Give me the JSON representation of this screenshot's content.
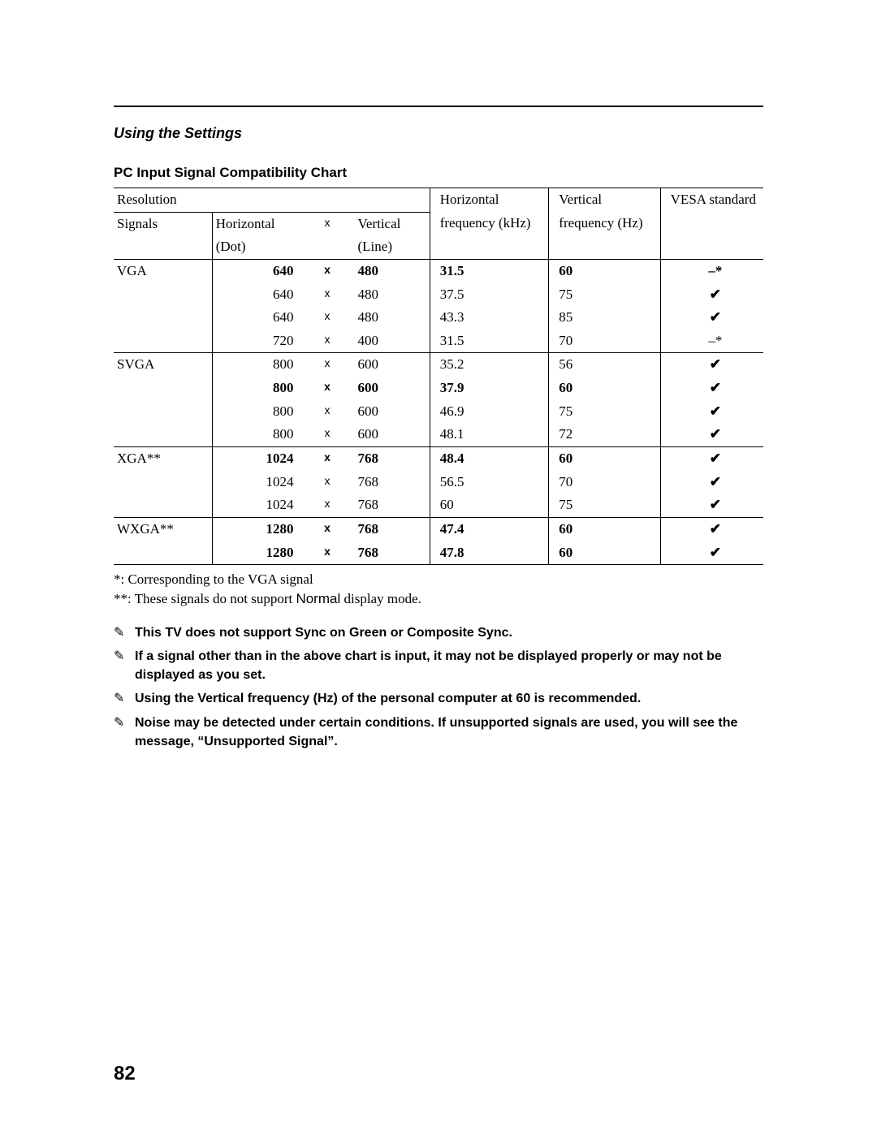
{
  "header": {
    "section": "Using the Settings",
    "subtitle": "PC Input Signal Compatibility Chart"
  },
  "table": {
    "head": {
      "resolution": "Resolution",
      "signals": "Signals",
      "horiz_dot_1": "Horizontal",
      "horiz_dot_2": "(Dot)",
      "x": "x",
      "vert_line_1": "Vertical",
      "vert_line_2": "(Line)",
      "hfreq_1": "Horizontal",
      "hfreq_2": "frequency (kHz)",
      "vfreq_1": "Vertical",
      "vfreq_2": "frequency (Hz)",
      "vesa": "VESA standard"
    },
    "groups": [
      {
        "signal": "VGA",
        "rows": [
          {
            "h": "640",
            "x": "x",
            "v": "480",
            "hf": "31.5",
            "vf": "60",
            "vesa": "–*",
            "bold": true
          },
          {
            "h": "640",
            "x": "x",
            "v": "480",
            "hf": "37.5",
            "vf": "75",
            "vesa": "✔",
            "bold": false
          },
          {
            "h": "640",
            "x": "x",
            "v": "480",
            "hf": "43.3",
            "vf": "85",
            "vesa": "✔",
            "bold": false
          },
          {
            "h": "720",
            "x": "x",
            "v": "400",
            "hf": "31.5",
            "vf": "70",
            "vesa": "–*",
            "bold": false
          }
        ]
      },
      {
        "signal": "SVGA",
        "rows": [
          {
            "h": "800",
            "x": "x",
            "v": "600",
            "hf": "35.2",
            "vf": "56",
            "vesa": "✔",
            "bold": false
          },
          {
            "h": "800",
            "x": "x",
            "v": "600",
            "hf": "37.9",
            "vf": "60",
            "vesa": "✔",
            "bold": true
          },
          {
            "h": "800",
            "x": "x",
            "v": "600",
            "hf": "46.9",
            "vf": "75",
            "vesa": "✔",
            "bold": false
          },
          {
            "h": "800",
            "x": "x",
            "v": "600",
            "hf": "48.1",
            "vf": "72",
            "vesa": "✔",
            "bold": false
          }
        ]
      },
      {
        "signal": "XGA**",
        "rows": [
          {
            "h": "1024",
            "x": "x",
            "v": "768",
            "hf": "48.4",
            "vf": "60",
            "vesa": "✔",
            "bold": true
          },
          {
            "h": "1024",
            "x": "x",
            "v": "768",
            "hf": "56.5",
            "vf": "70",
            "vesa": "✔",
            "bold": false
          },
          {
            "h": "1024",
            "x": "x",
            "v": "768",
            "hf": "60",
            "vf": "75",
            "vesa": "✔",
            "bold": false
          }
        ]
      },
      {
        "signal": "WXGA**",
        "rows": [
          {
            "h": "1280",
            "x": "x",
            "v": "768",
            "hf": "47.4",
            "vf": "60",
            "vesa": "✔",
            "bold": true
          },
          {
            "h": "1280",
            "x": "x",
            "v": "768",
            "hf": "47.8",
            "vf": "60",
            "vesa": "✔",
            "bold": true
          }
        ]
      }
    ]
  },
  "footnotes": {
    "a": "*: Corresponding to the VGA signal",
    "b_prefix": "**: These signals do not support ",
    "b_normal": "Normal",
    "b_suffix": " display mode."
  },
  "notes": [
    "This TV does not support Sync on Green or Composite Sync.",
    "If a signal other than in the above chart is input, it may not be displayed properly or may not be displayed as you set.",
    "Using the Vertical frequency (Hz) of the personal computer at 60 is recommended.",
    "Noise may be detected under certain conditions. If unsupported signals are used, you will see the message, “Unsupported Signal”."
  ],
  "note_icon": "✎",
  "page_number": "82"
}
